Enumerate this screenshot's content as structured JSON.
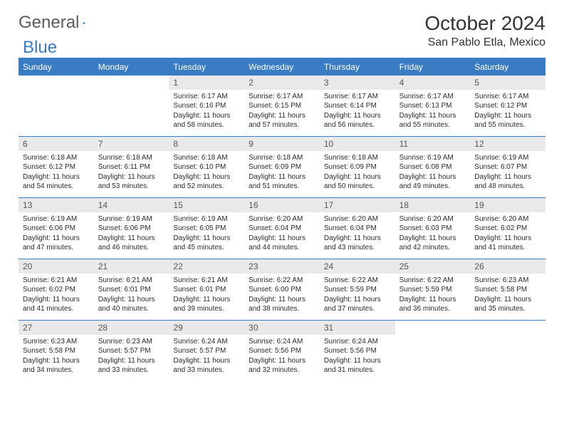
{
  "brand": {
    "text1": "General",
    "text2": "Blue"
  },
  "title": "October 2024",
  "location": "San Pablo Etla, Mexico",
  "colors": {
    "accent": "#3a7cc4",
    "daynum_bg": "#e9e9e9",
    "text": "#2b2b2b",
    "header_text": "#333333",
    "logo_gray": "#5c5c5c"
  },
  "daysOfWeek": [
    "Sunday",
    "Monday",
    "Tuesday",
    "Wednesday",
    "Thursday",
    "Friday",
    "Saturday"
  ],
  "startDayIndex": 2,
  "days": [
    {
      "n": 1,
      "sunrise": "6:17 AM",
      "sunset": "6:16 PM",
      "daylight": "11 hours and 58 minutes."
    },
    {
      "n": 2,
      "sunrise": "6:17 AM",
      "sunset": "6:15 PM",
      "daylight": "11 hours and 57 minutes."
    },
    {
      "n": 3,
      "sunrise": "6:17 AM",
      "sunset": "6:14 PM",
      "daylight": "11 hours and 56 minutes."
    },
    {
      "n": 4,
      "sunrise": "6:17 AM",
      "sunset": "6:13 PM",
      "daylight": "11 hours and 55 minutes."
    },
    {
      "n": 5,
      "sunrise": "6:17 AM",
      "sunset": "6:12 PM",
      "daylight": "11 hours and 55 minutes."
    },
    {
      "n": 6,
      "sunrise": "6:18 AM",
      "sunset": "6:12 PM",
      "daylight": "11 hours and 54 minutes."
    },
    {
      "n": 7,
      "sunrise": "6:18 AM",
      "sunset": "6:11 PM",
      "daylight": "11 hours and 53 minutes."
    },
    {
      "n": 8,
      "sunrise": "6:18 AM",
      "sunset": "6:10 PM",
      "daylight": "11 hours and 52 minutes."
    },
    {
      "n": 9,
      "sunrise": "6:18 AM",
      "sunset": "6:09 PM",
      "daylight": "11 hours and 51 minutes."
    },
    {
      "n": 10,
      "sunrise": "6:18 AM",
      "sunset": "6:09 PM",
      "daylight": "11 hours and 50 minutes."
    },
    {
      "n": 11,
      "sunrise": "6:19 AM",
      "sunset": "6:08 PM",
      "daylight": "11 hours and 49 minutes."
    },
    {
      "n": 12,
      "sunrise": "6:19 AM",
      "sunset": "6:07 PM",
      "daylight": "11 hours and 48 minutes."
    },
    {
      "n": 13,
      "sunrise": "6:19 AM",
      "sunset": "6:06 PM",
      "daylight": "11 hours and 47 minutes."
    },
    {
      "n": 14,
      "sunrise": "6:19 AM",
      "sunset": "6:06 PM",
      "daylight": "11 hours and 46 minutes."
    },
    {
      "n": 15,
      "sunrise": "6:19 AM",
      "sunset": "6:05 PM",
      "daylight": "11 hours and 45 minutes."
    },
    {
      "n": 16,
      "sunrise": "6:20 AM",
      "sunset": "6:04 PM",
      "daylight": "11 hours and 44 minutes."
    },
    {
      "n": 17,
      "sunrise": "6:20 AM",
      "sunset": "6:04 PM",
      "daylight": "11 hours and 43 minutes."
    },
    {
      "n": 18,
      "sunrise": "6:20 AM",
      "sunset": "6:03 PM",
      "daylight": "11 hours and 42 minutes."
    },
    {
      "n": 19,
      "sunrise": "6:20 AM",
      "sunset": "6:02 PM",
      "daylight": "11 hours and 41 minutes."
    },
    {
      "n": 20,
      "sunrise": "6:21 AM",
      "sunset": "6:02 PM",
      "daylight": "11 hours and 41 minutes."
    },
    {
      "n": 21,
      "sunrise": "6:21 AM",
      "sunset": "6:01 PM",
      "daylight": "11 hours and 40 minutes."
    },
    {
      "n": 22,
      "sunrise": "6:21 AM",
      "sunset": "6:01 PM",
      "daylight": "11 hours and 39 minutes."
    },
    {
      "n": 23,
      "sunrise": "6:22 AM",
      "sunset": "6:00 PM",
      "daylight": "11 hours and 38 minutes."
    },
    {
      "n": 24,
      "sunrise": "6:22 AM",
      "sunset": "5:59 PM",
      "daylight": "11 hours and 37 minutes."
    },
    {
      "n": 25,
      "sunrise": "6:22 AM",
      "sunset": "5:59 PM",
      "daylight": "11 hours and 36 minutes."
    },
    {
      "n": 26,
      "sunrise": "6:23 AM",
      "sunset": "5:58 PM",
      "daylight": "11 hours and 35 minutes."
    },
    {
      "n": 27,
      "sunrise": "6:23 AM",
      "sunset": "5:58 PM",
      "daylight": "11 hours and 34 minutes."
    },
    {
      "n": 28,
      "sunrise": "6:23 AM",
      "sunset": "5:57 PM",
      "daylight": "11 hours and 33 minutes."
    },
    {
      "n": 29,
      "sunrise": "6:24 AM",
      "sunset": "5:57 PM",
      "daylight": "11 hours and 33 minutes."
    },
    {
      "n": 30,
      "sunrise": "6:24 AM",
      "sunset": "5:56 PM",
      "daylight": "11 hours and 32 minutes."
    },
    {
      "n": 31,
      "sunrise": "6:24 AM",
      "sunset": "5:56 PM",
      "daylight": "11 hours and 31 minutes."
    }
  ],
  "labels": {
    "sunrise": "Sunrise:",
    "sunset": "Sunset:",
    "daylight": "Daylight:"
  }
}
